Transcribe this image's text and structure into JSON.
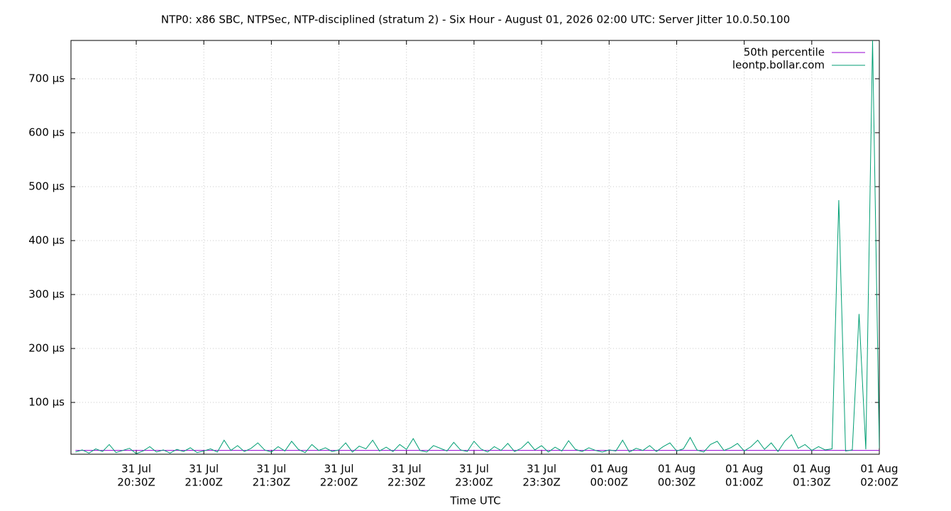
{
  "chart_data": {
    "type": "line",
    "title": "NTP0: x86 SBC, NTPSec, NTP-disciplined (stratum 2) - Six Hour - August 01, 2026 02:00 UTC: Server Jitter 10.0.50.100",
    "x_label": "Time UTC",
    "x": [
      "31 Jul 20:03",
      "31 Jul 20:06",
      "31 Jul 20:09",
      "31 Jul 20:12",
      "31 Jul 20:15",
      "31 Jul 20:18",
      "31 Jul 20:21",
      "31 Jul 20:24",
      "31 Jul 20:27",
      "31 Jul 20:30",
      "31 Jul 20:33",
      "31 Jul 20:36",
      "31 Jul 20:39",
      "31 Jul 20:42",
      "31 Jul 20:45",
      "31 Jul 20:48",
      "31 Jul 20:51",
      "31 Jul 20:54",
      "31 Jul 20:57",
      "31 Jul 21:00",
      "31 Jul 21:03",
      "31 Jul 21:06",
      "31 Jul 21:09",
      "31 Jul 21:12",
      "31 Jul 21:15",
      "31 Jul 21:18",
      "31 Jul 21:21",
      "31 Jul 21:24",
      "31 Jul 21:27",
      "31 Jul 21:30",
      "31 Jul 21:33",
      "31 Jul 21:36",
      "31 Jul 21:39",
      "31 Jul 21:42",
      "31 Jul 21:45",
      "31 Jul 21:48",
      "31 Jul 21:51",
      "31 Jul 21:54",
      "31 Jul 21:57",
      "31 Jul 22:00",
      "31 Jul 22:03",
      "31 Jul 22:06",
      "31 Jul 22:09",
      "31 Jul 22:12",
      "31 Jul 22:15",
      "31 Jul 22:18",
      "31 Jul 22:21",
      "31 Jul 22:24",
      "31 Jul 22:27",
      "31 Jul 22:30",
      "31 Jul 22:33",
      "31 Jul 22:36",
      "31 Jul 22:39",
      "31 Jul 22:42",
      "31 Jul 22:45",
      "31 Jul 22:48",
      "31 Jul 22:51",
      "31 Jul 22:54",
      "31 Jul 22:57",
      "31 Jul 23:00",
      "31 Jul 23:03",
      "31 Jul 23:06",
      "31 Jul 23:09",
      "31 Jul 23:12",
      "31 Jul 23:15",
      "31 Jul 23:18",
      "31 Jul 23:21",
      "31 Jul 23:24",
      "31 Jul 23:27",
      "31 Jul 23:30",
      "31 Jul 23:33",
      "31 Jul 23:36",
      "31 Jul 23:39",
      "31 Jul 23:42",
      "31 Jul 23:45",
      "31 Jul 23:48",
      "31 Jul 23:51",
      "31 Jul 23:54",
      "31 Jul 23:57",
      "01 Aug 00:00",
      "01 Aug 00:03",
      "01 Aug 00:06",
      "01 Aug 00:09",
      "01 Aug 00:12",
      "01 Aug 00:15",
      "01 Aug 00:18",
      "01 Aug 00:21",
      "01 Aug 00:24",
      "01 Aug 00:27",
      "01 Aug 00:30",
      "01 Aug 00:33",
      "01 Aug 00:36",
      "01 Aug 00:39",
      "01 Aug 00:42",
      "01 Aug 00:45",
      "01 Aug 00:48",
      "01 Aug 00:51",
      "01 Aug 00:54",
      "01 Aug 00:57",
      "01 Aug 01:00",
      "01 Aug 01:03",
      "01 Aug 01:06",
      "01 Aug 01:09",
      "01 Aug 01:12",
      "01 Aug 01:15",
      "01 Aug 01:18",
      "01 Aug 01:21",
      "01 Aug 01:24",
      "01 Aug 01:27",
      "01 Aug 01:30",
      "01 Aug 01:33",
      "01 Aug 01:36",
      "01 Aug 01:39",
      "01 Aug 01:42",
      "01 Aug 01:45",
      "01 Aug 01:48",
      "01 Aug 01:51",
      "01 Aug 01:54",
      "01 Aug 01:57",
      "01 Aug 02:00"
    ],
    "series": [
      {
        "name": "50th percentile",
        "color": "#9400d3",
        "x": [
          "31 Jul 20:03",
          "01 Aug 02:00"
        ],
        "values": [
          11,
          11
        ]
      },
      {
        "name": "leontp.bollar.com",
        "color": "#009e73",
        "values": [
          8,
          12,
          6,
          14,
          9,
          22,
          7,
          11,
          15,
          5,
          10,
          18,
          8,
          12,
          6,
          13,
          9,
          16,
          7,
          10,
          14,
          8,
          30,
          11,
          20,
          9,
          15,
          25,
          12,
          8,
          18,
          10,
          28,
          13,
          7,
          22,
          11,
          16,
          9,
          12,
          25,
          8,
          19,
          14,
          30,
          10,
          17,
          9,
          22,
          13,
          33,
          11,
          8,
          20,
          15,
          10,
          26,
          12,
          9,
          28,
          14,
          8,
          18,
          11,
          24,
          9,
          15,
          27,
          12,
          20,
          8,
          17,
          10,
          29,
          13,
          9,
          16,
          11,
          8,
          12,
          10,
          30,
          8,
          15,
          11,
          20,
          9,
          18,
          25,
          10,
          14,
          35,
          12,
          8,
          22,
          28,
          11,
          16,
          24,
          10,
          18,
          30,
          13,
          25,
          9,
          28,
          40,
          15,
          22,
          11,
          18,
          12,
          14,
          475,
          10,
          12,
          264,
          13,
          771,
          15
        ]
      }
    ],
    "xlim": [
      "31 Jul 20:01",
      "01 Aug 02:00"
    ],
    "xticks": [
      {
        "value": "31 Jul 20:30",
        "label": [
          "31 Jul",
          "20:30Z"
        ]
      },
      {
        "value": "31 Jul 21:00",
        "label": [
          "31 Jul",
          "21:00Z"
        ]
      },
      {
        "value": "31 Jul 21:30",
        "label": [
          "31 Jul",
          "21:30Z"
        ]
      },
      {
        "value": "31 Jul 22:00",
        "label": [
          "31 Jul",
          "22:00Z"
        ]
      },
      {
        "value": "31 Jul 22:30",
        "label": [
          "31 Jul",
          "22:30Z"
        ]
      },
      {
        "value": "31 Jul 23:00",
        "label": [
          "31 Jul",
          "23:00Z"
        ]
      },
      {
        "value": "31 Jul 23:30",
        "label": [
          "31 Jul",
          "23:30Z"
        ]
      },
      {
        "value": "01 Aug 00:00",
        "label": [
          "01 Aug",
          "00:00Z"
        ]
      },
      {
        "value": "01 Aug 00:30",
        "label": [
          "01 Aug",
          "00:30Z"
        ]
      },
      {
        "value": "01 Aug 01:00",
        "label": [
          "01 Aug",
          "01:00Z"
        ]
      },
      {
        "value": "01 Aug 01:30",
        "label": [
          "01 Aug",
          "01:30Z"
        ]
      },
      {
        "value": "01 Aug 02:00",
        "label": [
          "01 Aug",
          "02:00Z"
        ]
      }
    ],
    "ylim": [
      4,
      771
    ],
    "yticks": [
      {
        "value": 100,
        "label": "100 µs"
      },
      {
        "value": 200,
        "label": "200 µs"
      },
      {
        "value": 300,
        "label": "300 µs"
      },
      {
        "value": 400,
        "label": "400 µs"
      },
      {
        "value": 500,
        "label": "500 µs"
      },
      {
        "value": 600,
        "label": "600 µs"
      },
      {
        "value": 700,
        "label": "700 µs"
      }
    ],
    "grid": true,
    "legend": "top-right"
  }
}
